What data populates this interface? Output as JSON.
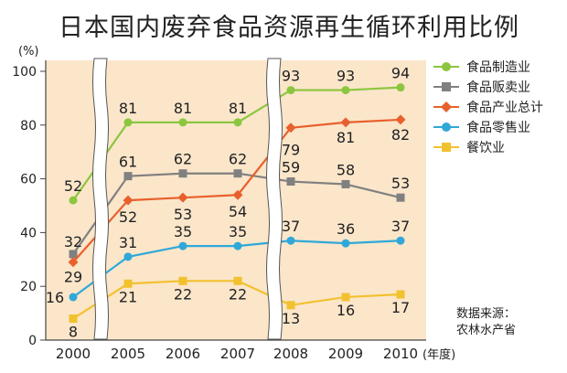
{
  "title": "日本国内废弃食品资源再生循环利用比例",
  "source": {
    "line1": "数据来源：",
    "line2": "农林水产省"
  },
  "chart_data": {
    "type": "line",
    "title": "日本国内废弃食品资源再生循环利用比例",
    "y_unit_label": "(%)",
    "x_unit_label": "(年度)",
    "ylim": [
      0,
      100
    ],
    "yticks": [
      0,
      20,
      40,
      60,
      80,
      100
    ],
    "x": [
      "2000",
      "2005",
      "2006",
      "2007",
      "2008",
      "2009",
      "2010"
    ],
    "axis_breaks_after": [
      "2000",
      "2007"
    ],
    "grid": false,
    "legend_position": "right",
    "series": [
      {
        "name": "食品制造业",
        "color": "#8cc63f",
        "marker": "circle",
        "values": [
          52,
          81,
          81,
          81,
          93,
          93,
          94
        ]
      },
      {
        "name": "食品贩卖业",
        "color": "#808080",
        "marker": "square",
        "values": [
          32,
          61,
          62,
          62,
          59,
          58,
          53
        ]
      },
      {
        "name": "食品产业总计",
        "color": "#e8602c",
        "marker": "diamond",
        "values": [
          29,
          52,
          53,
          54,
          79,
          81,
          82
        ]
      },
      {
        "name": "食品零售业",
        "color": "#2fa8d8",
        "marker": "circle",
        "values": [
          16,
          31,
          35,
          35,
          37,
          36,
          37
        ]
      },
      {
        "name": "餐饮业",
        "color": "#f2c12e",
        "marker": "square",
        "values": [
          8,
          21,
          22,
          22,
          13,
          16,
          17
        ]
      }
    ]
  }
}
